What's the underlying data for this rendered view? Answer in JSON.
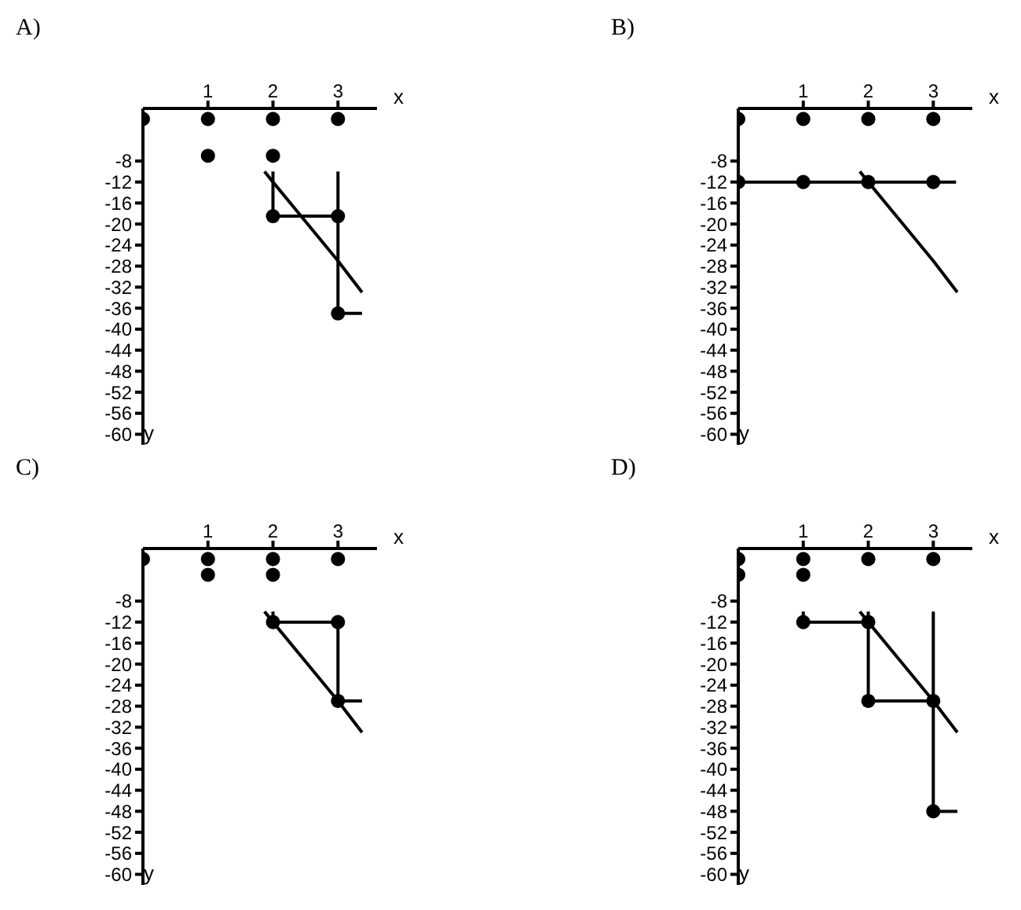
{
  "chart_data": [
    {
      "type": "line",
      "title": "A)",
      "xlabel": "x",
      "ylabel": "y",
      "xlim": [
        0,
        3.6
      ],
      "xticks": [
        1,
        2,
        3
      ],
      "ylim": [
        -62,
        2
      ],
      "yticks": [
        -8,
        -12,
        -16,
        -20,
        -24,
        -28,
        -32,
        -36,
        -40,
        -44,
        -48,
        -52,
        -56,
        -60
      ],
      "series": [
        {
          "x": [
            1.87,
            2,
            2.5,
            3,
            3.37
          ],
          "values": [
            -10,
            -12,
            -19.5,
            -27,
            -33
          ],
          "color": "#000000"
        },
        {
          "x": [
            2,
            2,
            3
          ],
          "values": [
            -10,
            -18.5,
            -18.5
          ],
          "color": "#000000"
        },
        {
          "x": [
            3,
            3,
            3.37
          ],
          "values": [
            -10,
            -37,
            -37
          ],
          "color": "#000000"
        },
        {
          "type": "scatter",
          "marker": "circle",
          "x": [
            0,
            1,
            2,
            3,
            1,
            2,
            2,
            3,
            3
          ],
          "values": [
            0,
            0,
            0,
            0,
            -7,
            -7,
            -18.5,
            -18.5,
            -37
          ],
          "color": "#000000"
        }
      ]
    },
    {
      "type": "line",
      "title": "B)",
      "xlabel": "x",
      "ylabel": "y",
      "xlim": [
        0,
        3.6
      ],
      "xticks": [
        1,
        2,
        3
      ],
      "ylim": [
        -62,
        2
      ],
      "yticks": [
        -8,
        -12,
        -16,
        -20,
        -24,
        -28,
        -32,
        -36,
        -40,
        -44,
        -48,
        -52,
        -56,
        -60
      ],
      "series": [
        {
          "x": [
            1.87,
            2,
            2.5,
            3,
            3.37
          ],
          "values": [
            -10,
            -12,
            -19.5,
            -27,
            -33
          ],
          "color": "#000000"
        },
        {
          "x": [
            0,
            3.35
          ],
          "values": [
            -12,
            -12
          ],
          "color": "#000000"
        },
        {
          "type": "scatter",
          "marker": "circle",
          "x": [
            0,
            1,
            2,
            3,
            0,
            1,
            2,
            3
          ],
          "values": [
            0,
            0,
            0,
            0,
            -12,
            -12,
            -12,
            -12
          ],
          "color": "#000000"
        }
      ]
    },
    {
      "type": "line",
      "title": "C)",
      "xlabel": "x",
      "ylabel": "y",
      "xlim": [
        0,
        3.6
      ],
      "xticks": [
        1,
        2,
        3
      ],
      "ylim": [
        -62,
        2
      ],
      "yticks": [
        -8,
        -12,
        -16,
        -20,
        -24,
        -28,
        -32,
        -36,
        -40,
        -44,
        -48,
        -52,
        -56,
        -60
      ],
      "series": [
        {
          "x": [
            1.87,
            2,
            2.5,
            3,
            3.37
          ],
          "values": [
            -10,
            -12,
            -19.5,
            -27,
            -33
          ],
          "color": "#000000"
        },
        {
          "x": [
            2,
            2,
            3,
            3,
            3.37
          ],
          "values": [
            -10,
            -12,
            -12,
            -27,
            -27
          ],
          "color": "#000000"
        },
        {
          "type": "scatter",
          "marker": "circle",
          "x": [
            0,
            1,
            2,
            3,
            1,
            2,
            2,
            3,
            3
          ],
          "values": [
            0,
            0,
            0,
            0,
            -3,
            -3,
            -12,
            -12,
            -27
          ],
          "color": "#000000"
        }
      ]
    },
    {
      "type": "line",
      "title": "D)",
      "xlabel": "x",
      "ylabel": "y",
      "xlim": [
        0,
        3.6
      ],
      "xticks": [
        1,
        2,
        3
      ],
      "ylim": [
        -62,
        2
      ],
      "yticks": [
        -8,
        -12,
        -16,
        -20,
        -24,
        -28,
        -32,
        -36,
        -40,
        -44,
        -48,
        -52,
        -56,
        -60
      ],
      "series": [
        {
          "x": [
            1.87,
            2,
            2.5,
            3,
            3.37
          ],
          "values": [
            -10,
            -12,
            -19.5,
            -27,
            -33
          ],
          "color": "#000000"
        },
        {
          "x": [
            1,
            1,
            2
          ],
          "values": [
            -10,
            -12,
            -12
          ],
          "color": "#000000"
        },
        {
          "x": [
            2,
            2,
            3
          ],
          "values": [
            -10,
            -27,
            -27
          ],
          "color": "#000000"
        },
        {
          "x": [
            3,
            3,
            3.37
          ],
          "values": [
            -10,
            -48,
            -48
          ],
          "color": "#000000"
        },
        {
          "type": "scatter",
          "marker": "circle",
          "x": [
            0,
            1,
            2,
            3,
            0,
            1,
            1,
            2,
            2,
            3,
            3
          ],
          "values": [
            0,
            0,
            0,
            0,
            -3,
            -3,
            -12,
            -12,
            -27,
            -27,
            -48
          ],
          "color": "#000000"
        }
      ]
    }
  ]
}
